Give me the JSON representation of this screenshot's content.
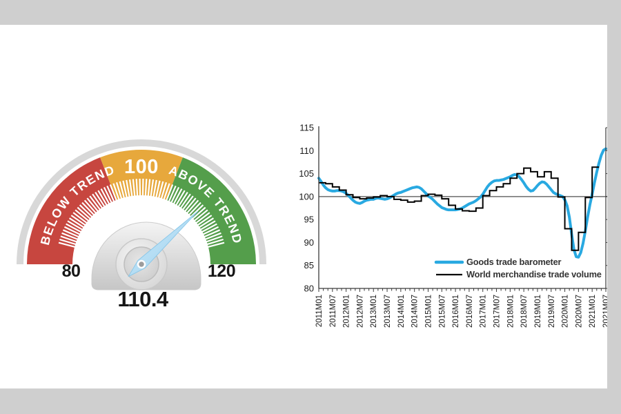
{
  "page": {
    "background_color": "#cfcfcf",
    "canvas_color": "#ffffff"
  },
  "gauge": {
    "min": 80,
    "max": 120,
    "value": 110.4,
    "value_label": "110.4",
    "min_label": "80",
    "max_label": "120",
    "center_label": "100",
    "below_label": "BELOW TREND",
    "above_label": "ABOVE TREND",
    "ring_color": "#d8d8d8",
    "tick_color": "#ffffff",
    "needle_color": "#b3dcf4",
    "needle_edge_color": "#86c6e9",
    "zones": [
      {
        "label": "BELOW TREND",
        "from": 80,
        "to": 95.3,
        "color": "#c7463f"
      },
      {
        "label": "100",
        "from": 95.3,
        "to": 104.7,
        "color": "#e7a83c"
      },
      {
        "label": "ABOVE TREND",
        "from": 104.7,
        "to": 120,
        "color": "#549e4b"
      }
    ]
  },
  "chart_data": {
    "type": "line",
    "title": "",
    "xlabel": "",
    "ylabel": "",
    "ylim": [
      80,
      115
    ],
    "yticks": [
      80,
      85,
      90,
      95,
      100,
      105,
      110,
      115
    ],
    "reference_line": 100,
    "reference_line_color": "#808080",
    "grid": false,
    "legend_position": "inside-bottom-right",
    "x_start": "2011M01",
    "x_end": "2021M07",
    "x_tick_labels": [
      "2011M01",
      "2011M07",
      "2012M01",
      "2012M07",
      "2013M01",
      "2013M07",
      "2014M01",
      "2014M07",
      "2015M01",
      "2015M07",
      "2016M01",
      "2016M07",
      "2017M01",
      "2017M07",
      "2018M01",
      "2018M07",
      "2019M01",
      "2019M07",
      "2020M01",
      "2020M07",
      "2021M01",
      "2021M07"
    ],
    "x_tick_interval_months": 6,
    "series": [
      {
        "name": "Goods trade barometer",
        "color": "#29a9e1",
        "line_width": 4,
        "style": "line",
        "interval_months": 1,
        "values": [
          104.0,
          103.3,
          102.5,
          101.9,
          101.5,
          101.3,
          101.2,
          101.2,
          101.3,
          101.3,
          101.2,
          101.0,
          100.7,
          100.2,
          99.7,
          99.2,
          98.8,
          98.6,
          98.5,
          98.7,
          99.0,
          99.2,
          99.3,
          99.4,
          99.4,
          99.6,
          99.7,
          99.6,
          99.5,
          99.4,
          99.5,
          99.7,
          100.0,
          100.3,
          100.6,
          100.8,
          100.9,
          101.1,
          101.3,
          101.5,
          101.7,
          101.9,
          102.0,
          102.1,
          102.0,
          101.7,
          101.2,
          100.7,
          100.1,
          99.8,
          99.4,
          98.9,
          98.4,
          98.0,
          97.6,
          97.4,
          97.2,
          97.1,
          97.1,
          97.1,
          97.1,
          97.2,
          97.3,
          97.5,
          97.8,
          98.1,
          98.4,
          98.6,
          98.8,
          99.1,
          99.5,
          99.9,
          100.5,
          101.3,
          102.1,
          102.7,
          103.1,
          103.4,
          103.5,
          103.5,
          103.6,
          103.7,
          103.9,
          104.1,
          104.3,
          104.6,
          104.8,
          104.7,
          104.3,
          103.7,
          103.0,
          102.2,
          101.6,
          101.2,
          101.3,
          101.8,
          102.4,
          102.9,
          103.2,
          103.1,
          102.7,
          102.1,
          101.5,
          100.9,
          100.6,
          100.4,
          100.2,
          100.0,
          99.3,
          98.0,
          95.5,
          91.8,
          88.5,
          86.9,
          86.8,
          87.8,
          89.8,
          92.5,
          95.5,
          98.2,
          100.5,
          103.0,
          105.3,
          107.3,
          109.0,
          110.1,
          110.4
        ]
      },
      {
        "name": "World merchandise trade volume",
        "color": "#000000",
        "line_width": 2,
        "style": "step",
        "interval_months": 3,
        "values": [
          103.0,
          102.8,
          102.1,
          101.4,
          100.4,
          99.8,
          99.5,
          99.7,
          99.9,
          100.2,
          100.0,
          99.4,
          99.2,
          98.8,
          99.0,
          100.2,
          100.5,
          100.3,
          99.5,
          98.1,
          97.3,
          96.9,
          96.8,
          97.5,
          100.2,
          101.3,
          102.1,
          102.8,
          104.0,
          105.0,
          106.2,
          105.4,
          104.3,
          105.4,
          104.0,
          99.9,
          93.0,
          88.3,
          92.2,
          99.8,
          106.4
        ]
      }
    ]
  }
}
